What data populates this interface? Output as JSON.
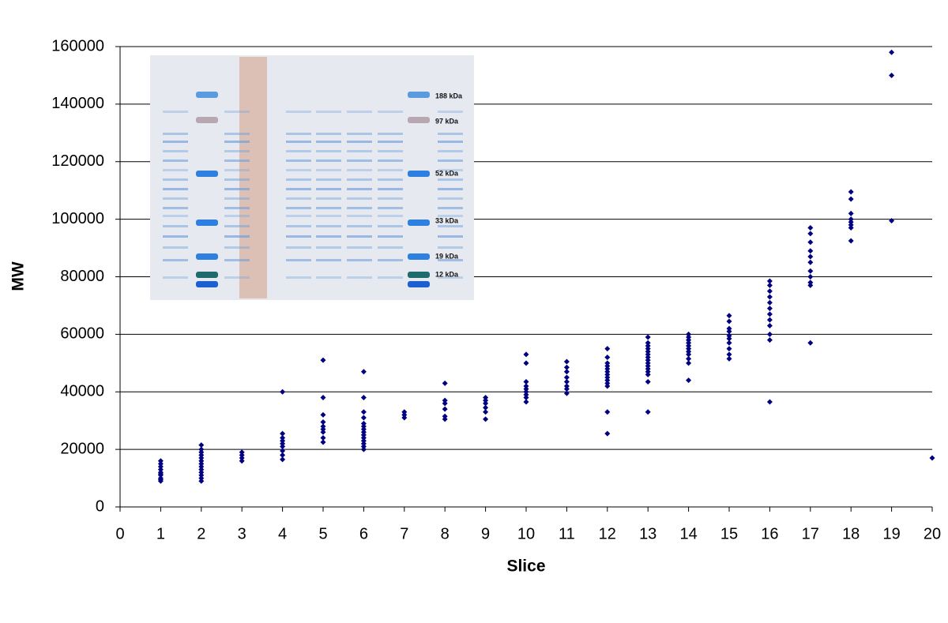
{
  "chart_data": {
    "type": "scatter",
    "xlabel": "Slice",
    "ylabel": "MW",
    "color": "#000080",
    "xlim": [
      0,
      20
    ],
    "xticks": [
      0,
      1,
      2,
      3,
      4,
      5,
      6,
      7,
      8,
      9,
      10,
      11,
      12,
      13,
      14,
      15,
      16,
      17,
      18,
      19,
      20
    ],
    "ylim": [
      0,
      160000
    ],
    "yticks": [
      0,
      20000,
      40000,
      60000,
      80000,
      100000,
      120000,
      140000,
      160000
    ],
    "grid": true,
    "x": [
      1,
      1,
      1,
      1,
      1,
      1,
      1,
      1,
      1,
      1,
      2,
      2,
      2,
      2,
      2,
      2,
      2,
      2,
      2,
      2,
      2,
      2,
      2,
      3,
      3,
      3,
      3,
      4,
      4,
      4,
      4,
      4,
      4,
      4,
      4,
      4,
      5,
      5,
      5,
      5,
      5,
      5,
      5,
      5,
      5,
      6,
      6,
      6,
      6,
      6,
      6,
      6,
      6,
      6,
      6,
      6,
      6,
      6,
      6,
      7,
      7,
      7,
      8,
      8,
      8,
      8,
      8,
      8,
      9,
      9,
      9,
      9,
      9,
      9,
      10,
      10,
      10,
      10,
      10,
      10,
      10,
      10,
      10,
      11,
      11,
      11,
      11,
      11,
      11,
      11,
      11,
      12,
      12,
      12,
      12,
      12,
      12,
      12,
      12,
      12,
      12,
      12,
      12,
      12,
      13,
      13,
      13,
      13,
      13,
      13,
      13,
      13,
      13,
      13,
      13,
      13,
      13,
      13,
      13,
      14,
      14,
      14,
      14,
      14,
      14,
      14,
      14,
      14,
      14,
      14,
      15,
      15,
      15,
      15,
      15,
      15,
      15,
      15,
      15,
      15,
      16,
      16,
      16,
      16,
      16,
      16,
      16,
      16,
      16,
      16,
      16,
      16,
      17,
      17,
      17,
      17,
      17,
      17,
      17,
      17,
      17,
      17,
      17,
      18,
      18,
      18,
      18,
      18,
      18,
      18,
      18,
      19,
      19,
      19,
      20
    ],
    "values": [
      9000,
      9500,
      10000,
      11000,
      11500,
      12000,
      13000,
      14000,
      15000,
      16000,
      9000,
      10000,
      11000,
      12000,
      13000,
      14000,
      15000,
      16000,
      17000,
      18000,
      19000,
      20000,
      21500,
      16000,
      17000,
      18000,
      19000,
      16500,
      18000,
      19500,
      21000,
      22000,
      23000,
      24000,
      25500,
      40000,
      22500,
      24000,
      26000,
      27000,
      28000,
      29500,
      32000,
      38000,
      51000,
      20000,
      21000,
      22000,
      23000,
      24000,
      25000,
      26000,
      27000,
      28000,
      29000,
      31000,
      33000,
      38000,
      47000,
      31000,
      32000,
      33000,
      30500,
      31500,
      34000,
      36000,
      37000,
      43000,
      30500,
      33000,
      34500,
      36000,
      37000,
      38000,
      36500,
      38000,
      39000,
      40000,
      41000,
      42000,
      43500,
      50000,
      53000,
      39500,
      41000,
      42000,
      43500,
      45000,
      47000,
      48500,
      50500,
      25500,
      33000,
      42000,
      43000,
      44000,
      45000,
      46000,
      47000,
      48000,
      49000,
      50000,
      52000,
      55000,
      33000,
      43500,
      46000,
      47000,
      48000,
      49000,
      50000,
      51000,
      52000,
      53000,
      54000,
      55000,
      56000,
      57000,
      59000,
      44000,
      50000,
      51500,
      53000,
      54000,
      55000,
      56000,
      57000,
      58000,
      59000,
      60000,
      51500,
      53000,
      55000,
      57000,
      58500,
      59500,
      61000,
      62000,
      64500,
      66500,
      36500,
      58000,
      60000,
      63000,
      65000,
      67000,
      69000,
      71000,
      73000,
      75000,
      77000,
      78500,
      57000,
      77000,
      78000,
      80000,
      82000,
      85000,
      87000,
      89000,
      92000,
      95000,
      97000,
      92500,
      97000,
      98000,
      99000,
      100000,
      102000,
      107000,
      109500,
      99500,
      150000,
      158000,
      17000
    ]
  },
  "inset": {
    "labels": [
      "188 kDa",
      "97 kDa",
      "52 kDa",
      "33 kDa",
      "19 kDa",
      "12 kDa"
    ]
  }
}
